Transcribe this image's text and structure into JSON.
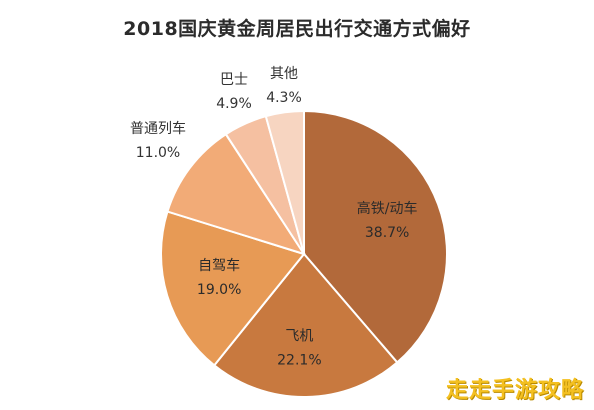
{
  "chart_data": {
    "type": "pie",
    "title": "2018国庆黄金周居民出行交通方式偏好",
    "categories": [
      "高铁/动车",
      "飞机",
      "自驾车",
      "普通列车",
      "巴士",
      "其他"
    ],
    "values": [
      38.7,
      22.1,
      19.0,
      11.0,
      4.9,
      4.3
    ],
    "value_labels": [
      "38.7%",
      "22.1%",
      "19.0%",
      "11.0%",
      "4.9%",
      "4.3%"
    ],
    "colors": [
      "#b2693a",
      "#c8793f",
      "#e79a55",
      "#f2ab77",
      "#f5c0a1",
      "#f7d5c1"
    ],
    "label_positions": [
      "inside",
      "inside",
      "inside",
      "outside",
      "outside",
      "outside"
    ],
    "start_angle_deg": 0,
    "direction": "clockwise"
  },
  "watermark": "走走手游攻略"
}
